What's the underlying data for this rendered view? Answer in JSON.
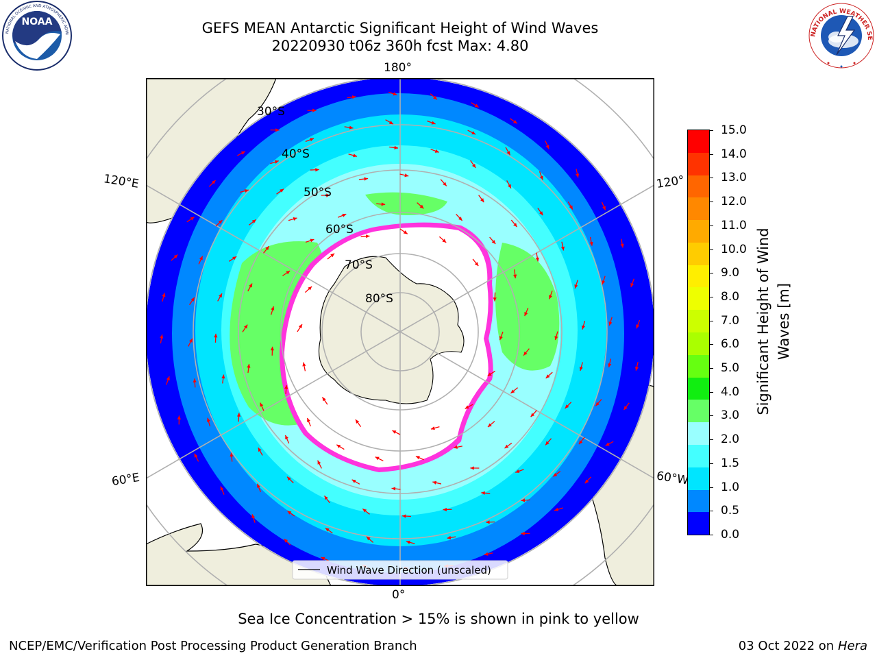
{
  "title_line1": "GEFS MEAN Antarctic Significant Height of Wind Waves",
  "title_line2": "20220930 t06z 360h fcst   Max: 4.80",
  "logos": {
    "noaa_text": "NOAA",
    "noaa_ring": "NATIONAL OCEANIC AND ATMOSPHERIC ADMINISTRATION · U.S. DEPARTMENT OF COMMERCE",
    "nws_ring": "NATIONAL WEATHER SERVICE"
  },
  "map": {
    "lon_labels": {
      "top": "180°",
      "bottom": "0°",
      "left_upper": "120°E",
      "left_lower": "60°E",
      "right_upper": "120°",
      "right_lower": "60°W"
    },
    "lat_labels": [
      "30°S",
      "40°S",
      "50°S",
      "60°S",
      "70°S",
      "80°S"
    ],
    "legend_label": "Wind Wave Direction (unscaled)"
  },
  "colorbar": {
    "label": "Significant Height of Wind Waves [m]",
    "ticks": [
      "15.0",
      "14.0",
      "13.0",
      "12.0",
      "11.0",
      "10.0",
      "9.0",
      "8.0",
      "7.0",
      "6.0",
      "5.0",
      "4.0",
      "3.0",
      "2.0",
      "1.5",
      "1.0",
      "0.5",
      "0.0"
    ],
    "colors": [
      "#ff0000",
      "#ff3300",
      "#ff6600",
      "#ff8800",
      "#ffaa00",
      "#ffcc00",
      "#ffee00",
      "#eeff00",
      "#ccff00",
      "#aaff00",
      "#66ff11",
      "#11ee11",
      "#66ff66",
      "#99ffff",
      "#44ffff",
      "#00e5ff",
      "#0088ff",
      "#0000ff"
    ]
  },
  "colors": {
    "land": "#efeedd",
    "ice": "#ffffff",
    "ice_edge_pink": "#ff33dd",
    "ice_edge_orange": "#ffaa00",
    "arrow": "#ff0000",
    "grid": "#b0b0b0"
  },
  "note": "Sea Ice Concentration > 15% is shown in pink to yellow",
  "footer_left": "NCEP/EMC/Verification Post Processing Product Generation Branch",
  "footer_right_date": "03 Oct 2022 on",
  "footer_right_machine": "Hera"
}
